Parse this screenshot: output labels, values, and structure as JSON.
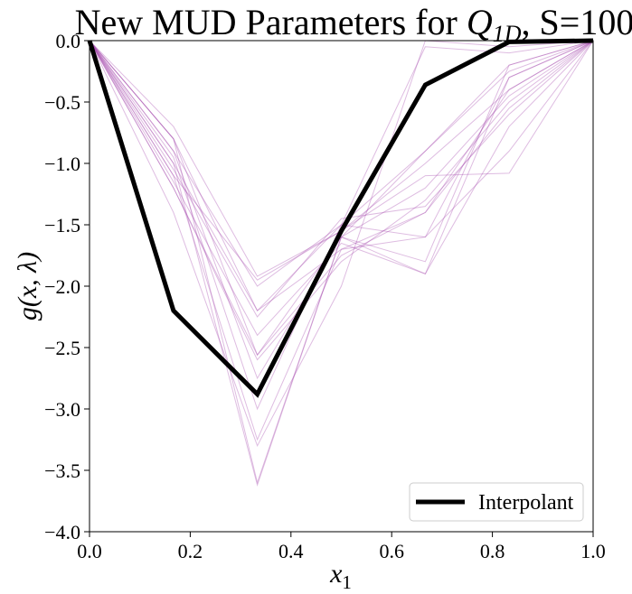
{
  "chart_data": {
    "type": "line",
    "title": {
      "prefix": "New MUD Parameters for ",
      "var": "Q",
      "sub": "1D",
      "suffix": ", S=100"
    },
    "xlabel": {
      "var": "x",
      "sub": "1"
    },
    "ylabel": "g(x, λ)",
    "xlim": [
      0.0,
      1.0
    ],
    "ylim": [
      -4.0,
      0.0
    ],
    "x_ticks": [
      0.0,
      0.2,
      0.4,
      0.6,
      0.8,
      1.0
    ],
    "y_ticks": [
      0.0,
      -0.5,
      -1.0,
      -1.5,
      -2.0,
      -2.5,
      -3.0,
      -3.5,
      -4.0
    ],
    "x_tick_labels": [
      "0.0",
      "0.2",
      "0.4",
      "0.6",
      "0.8",
      "1.0"
    ],
    "y_tick_labels": [
      "0.0",
      "−0.5",
      "−1.0",
      "−1.5",
      "−2.0",
      "−2.5",
      "−3.0",
      "−3.5",
      "−4.0"
    ],
    "x": [
      0.0,
      0.1667,
      0.3333,
      0.5,
      0.6667,
      0.8333,
      1.0
    ],
    "legend": {
      "label": "Interpolant",
      "position": "lower-right"
    },
    "grid": false,
    "colors": {
      "interpolant": "#000000",
      "samples": "#a040a8"
    },
    "interpolant": [
      0.0,
      -2.2,
      -2.88,
      -1.55,
      -0.36,
      -0.01,
      0.0
    ],
    "samples": [
      [
        0.0,
        -0.8,
        -2.2,
        -1.5,
        -0.9,
        -0.25,
        0.0
      ],
      [
        0.0,
        -0.8,
        -2.56,
        -1.6,
        -0.9,
        -0.2,
        0.0
      ],
      [
        0.0,
        -1.0,
        -2.2,
        -1.7,
        -1.4,
        -0.4,
        0.0
      ],
      [
        0.0,
        -1.2,
        -2.56,
        -1.75,
        -1.4,
        -0.55,
        0.0
      ],
      [
        0.0,
        -1.1,
        -1.95,
        -1.55,
        -1.0,
        -0.4,
        0.0
      ],
      [
        0.0,
        -0.9,
        -2.75,
        -1.6,
        -1.2,
        -0.45,
        0.0
      ],
      [
        0.0,
        -0.8,
        -3.6,
        -1.6,
        -1.8,
        -0.2,
        0.0
      ],
      [
        0.0,
        -1.1,
        -3.25,
        -1.7,
        -1.6,
        -0.3,
        0.0
      ],
      [
        0.0,
        -1.0,
        -3.62,
        -1.6,
        -1.9,
        -0.7,
        0.0
      ],
      [
        0.0,
        -0.7,
        -1.92,
        -1.55,
        -1.1,
        -1.08,
        0.0
      ],
      [
        0.0,
        -1.4,
        -3.3,
        -2.0,
        0.0,
        -0.05,
        0.0
      ],
      [
        0.0,
        -1.2,
        -2.6,
        -1.8,
        -1.3,
        -0.5,
        0.0
      ],
      [
        0.0,
        -1.05,
        -2.25,
        -1.45,
        -1.35,
        -0.6,
        0.0
      ],
      [
        0.0,
        -0.95,
        -3.0,
        -1.5,
        -0.05,
        -0.1,
        0.0
      ],
      [
        0.0,
        -1.15,
        -2.4,
        -1.65,
        -1.9,
        -0.3,
        0.0
      ],
      [
        0.0,
        -0.9,
        -2.0,
        -1.5,
        -1.6,
        -0.9,
        0.0
      ]
    ]
  }
}
